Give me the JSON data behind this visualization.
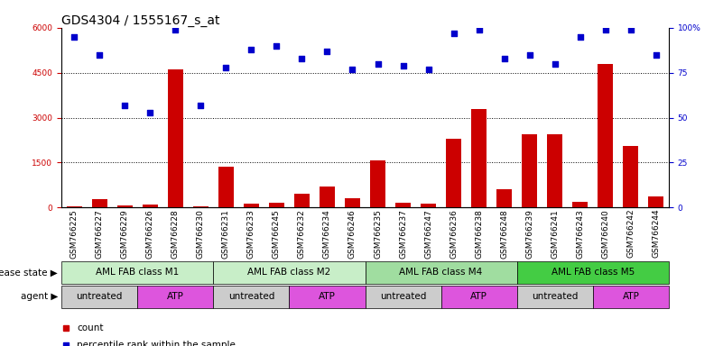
{
  "title": "GDS4304 / 1555167_s_at",
  "samples": [
    "GSM766225",
    "GSM766227",
    "GSM766229",
    "GSM766226",
    "GSM766228",
    "GSM766230",
    "GSM766231",
    "GSM766233",
    "GSM766245",
    "GSM766232",
    "GSM766234",
    "GSM766246",
    "GSM766235",
    "GSM766237",
    "GSM766247",
    "GSM766236",
    "GSM766238",
    "GSM766248",
    "GSM766239",
    "GSM766241",
    "GSM766243",
    "GSM766240",
    "GSM766242",
    "GSM766244"
  ],
  "counts": [
    30,
    280,
    80,
    110,
    4600,
    40,
    1350,
    130,
    150,
    450,
    700,
    320,
    1580,
    170,
    130,
    2300,
    3300,
    600,
    2450,
    2450,
    180,
    4800,
    2050,
    370
  ],
  "pct": [
    95,
    85,
    57,
    53,
    99,
    57,
    78,
    88,
    90,
    83,
    87,
    77,
    80,
    79,
    77,
    97,
    99,
    83,
    85,
    80,
    95,
    99,
    99,
    85
  ],
  "disease_groups": [
    {
      "label": "AML FAB class M1",
      "start": 0,
      "end": 6,
      "color": "#c8eec8"
    },
    {
      "label": "AML FAB class M2",
      "start": 6,
      "end": 12,
      "color": "#c8eec8"
    },
    {
      "label": "AML FAB class M4",
      "start": 12,
      "end": 18,
      "color": "#a0dda0"
    },
    {
      "label": "AML FAB class M5",
      "start": 18,
      "end": 24,
      "color": "#44cc44"
    }
  ],
  "agent_groups": [
    {
      "label": "untreated",
      "start": 0,
      "end": 3,
      "color": "#cccccc"
    },
    {
      "label": "ATP",
      "start": 3,
      "end": 6,
      "color": "#dd55dd"
    },
    {
      "label": "untreated",
      "start": 6,
      "end": 9,
      "color": "#cccccc"
    },
    {
      "label": "ATP",
      "start": 9,
      "end": 12,
      "color": "#dd55dd"
    },
    {
      "label": "untreated",
      "start": 12,
      "end": 15,
      "color": "#cccccc"
    },
    {
      "label": "ATP",
      "start": 15,
      "end": 18,
      "color": "#dd55dd"
    },
    {
      "label": "untreated",
      "start": 18,
      "end": 21,
      "color": "#cccccc"
    },
    {
      "label": "ATP",
      "start": 21,
      "end": 24,
      "color": "#dd55dd"
    }
  ],
  "ylim_left": [
    0,
    6000
  ],
  "ylim_right": [
    0,
    100
  ],
  "yticks_left": [
    0,
    1500,
    3000,
    4500,
    6000
  ],
  "yticks_right": [
    0,
    25,
    50,
    75,
    100
  ],
  "bar_color": "#cc0000",
  "dot_color": "#0000cc",
  "dot_size": 20,
  "title_fontsize": 10,
  "tick_fontsize": 6.5,
  "label_fontsize": 7.5,
  "group_fontsize": 7.5,
  "legend_fontsize": 7.5,
  "bar_width": 0.6
}
